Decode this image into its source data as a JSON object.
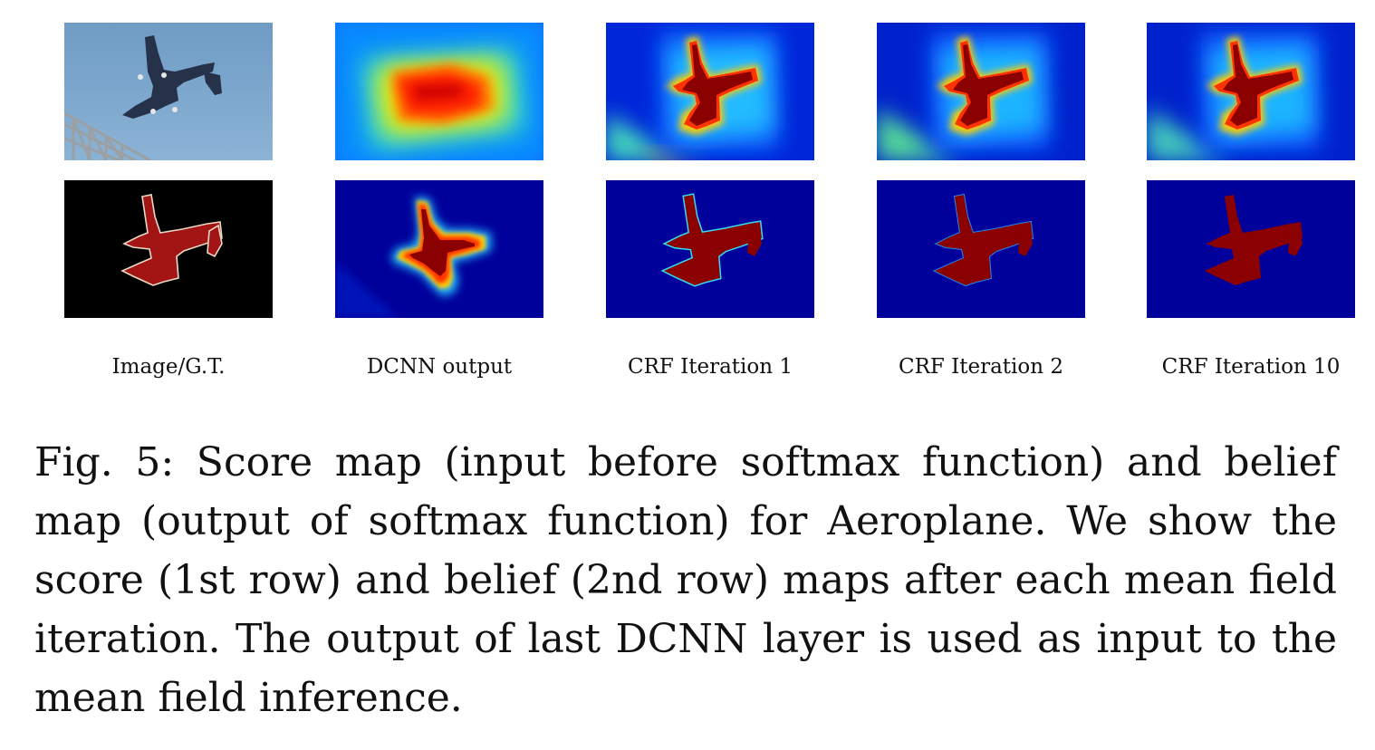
{
  "figure": {
    "columns": [
      {
        "id": "image",
        "label": "Image/G.T."
      },
      {
        "id": "dcnn",
        "label": "DCNN output"
      },
      {
        "id": "crf1",
        "label": "CRF Iteration 1"
      },
      {
        "id": "crf2",
        "label": "CRF Iteration 2"
      },
      {
        "id": "crf10",
        "label": "CRF Iteration 10"
      }
    ],
    "caption": "Fig. 5: Score map (input before softmax function) and belief map (output of softmax function) for Aeroplane. We show the score (1st row) and belief (2nd row) maps after each mean field iteration. The output of last DCNN layer is used as input to the mean field inference."
  },
  "colors": {
    "sky": "#7fa9cf",
    "bridge": "#8a8f94",
    "plane_photo": "#27344d",
    "gt_background": "#000000",
    "gt_object": "#a31414",
    "gt_outline": "#e8d9c4",
    "jet_low": "#00007f",
    "jet_mid_low": "#0033ff",
    "jet_mid": "#22ccee",
    "jet_mid_high": "#ffee00",
    "jet_high_orange": "#ff4400",
    "jet_high": "#8b0000"
  }
}
